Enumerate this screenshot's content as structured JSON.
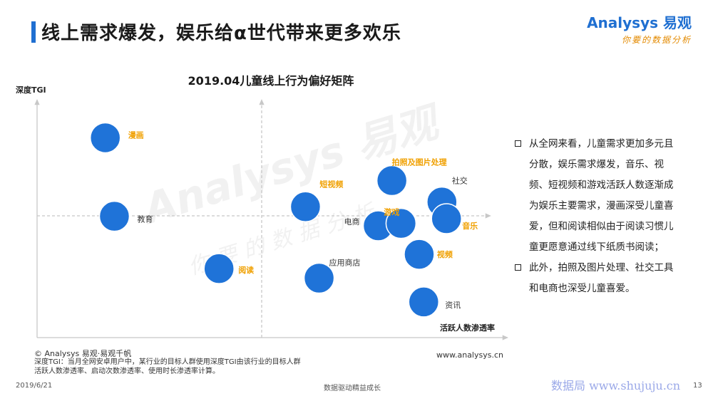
{
  "slide": {
    "title": "线上需求爆发，娱乐给α世代带来更多欢乐",
    "logo": {
      "brand": "Analysys 易观",
      "tagline": "你要的数据分析"
    },
    "watermark": {
      "brand": "Analysys 易观",
      "tagline": "你要的数据分析"
    }
  },
  "chart_data": {
    "type": "scatter",
    "title": "2019.04儿童线上行为偏好矩阵",
    "xlabel": "活跃人数渗透率",
    "ylabel": "深度TGI",
    "grid": false,
    "quadrant_lines": true,
    "points": [
      {
        "label": "漫画",
        "x": 0.15,
        "y": 0.84,
        "highlight": true
      },
      {
        "label": "教育",
        "x": 0.17,
        "y": 0.51,
        "highlight": false
      },
      {
        "label": "阅读",
        "x": 0.4,
        "y": 0.29,
        "highlight": true
      },
      {
        "label": "短视频",
        "x": 0.59,
        "y": 0.55,
        "highlight": true
      },
      {
        "label": "应用商店",
        "x": 0.62,
        "y": 0.25,
        "highlight": false
      },
      {
        "label": "拍照及图片处理",
        "x": 0.78,
        "y": 0.66,
        "highlight": true
      },
      {
        "label": "电商",
        "x": 0.75,
        "y": 0.47,
        "highlight": false
      },
      {
        "label": "游戏",
        "x": 0.8,
        "y": 0.48,
        "highlight": true
      },
      {
        "label": "社交",
        "x": 0.89,
        "y": 0.57,
        "highlight": false
      },
      {
        "label": "音乐",
        "x": 0.9,
        "y": 0.5,
        "highlight": true
      },
      {
        "label": "视频",
        "x": 0.84,
        "y": 0.35,
        "highlight": true
      },
      {
        "label": "资讯",
        "x": 0.85,
        "y": 0.15,
        "highlight": false
      }
    ],
    "colors": {
      "bubble": "#1f73d8",
      "highlight_label": "#f0a000",
      "normal_label": "#333333",
      "axis": "#c8c8c8"
    }
  },
  "analysis": {
    "bullets": [
      "从全网来看，儿童需求更加多元且分散，娱乐需求爆发，音乐、视频、短视频和游戏活跃人数逐渐成为娱乐主要需求，漫画深受儿童喜爱，但和阅读相似由于阅读习惯儿童更愿意通过线下纸质书阅读；",
      "此外，拍照及图片处理、社交工具和电商也深受儿童喜爱。"
    ]
  },
  "footer": {
    "copyright": "© Analysys 易观·易观千帆",
    "note": "深度TGI：当月全网安卓用户中，某行业的目标人群使用深度TGI由该行业的目标人群活跃人数渗透率、启动次数渗透率、使用时长渗透率计算。",
    "url": "www.analysys.cn",
    "date": "2019/6/21",
    "slogan": "数据驱动精益成长",
    "watermark_site": "数据局 www.shujuju.cn",
    "page": "13"
  }
}
